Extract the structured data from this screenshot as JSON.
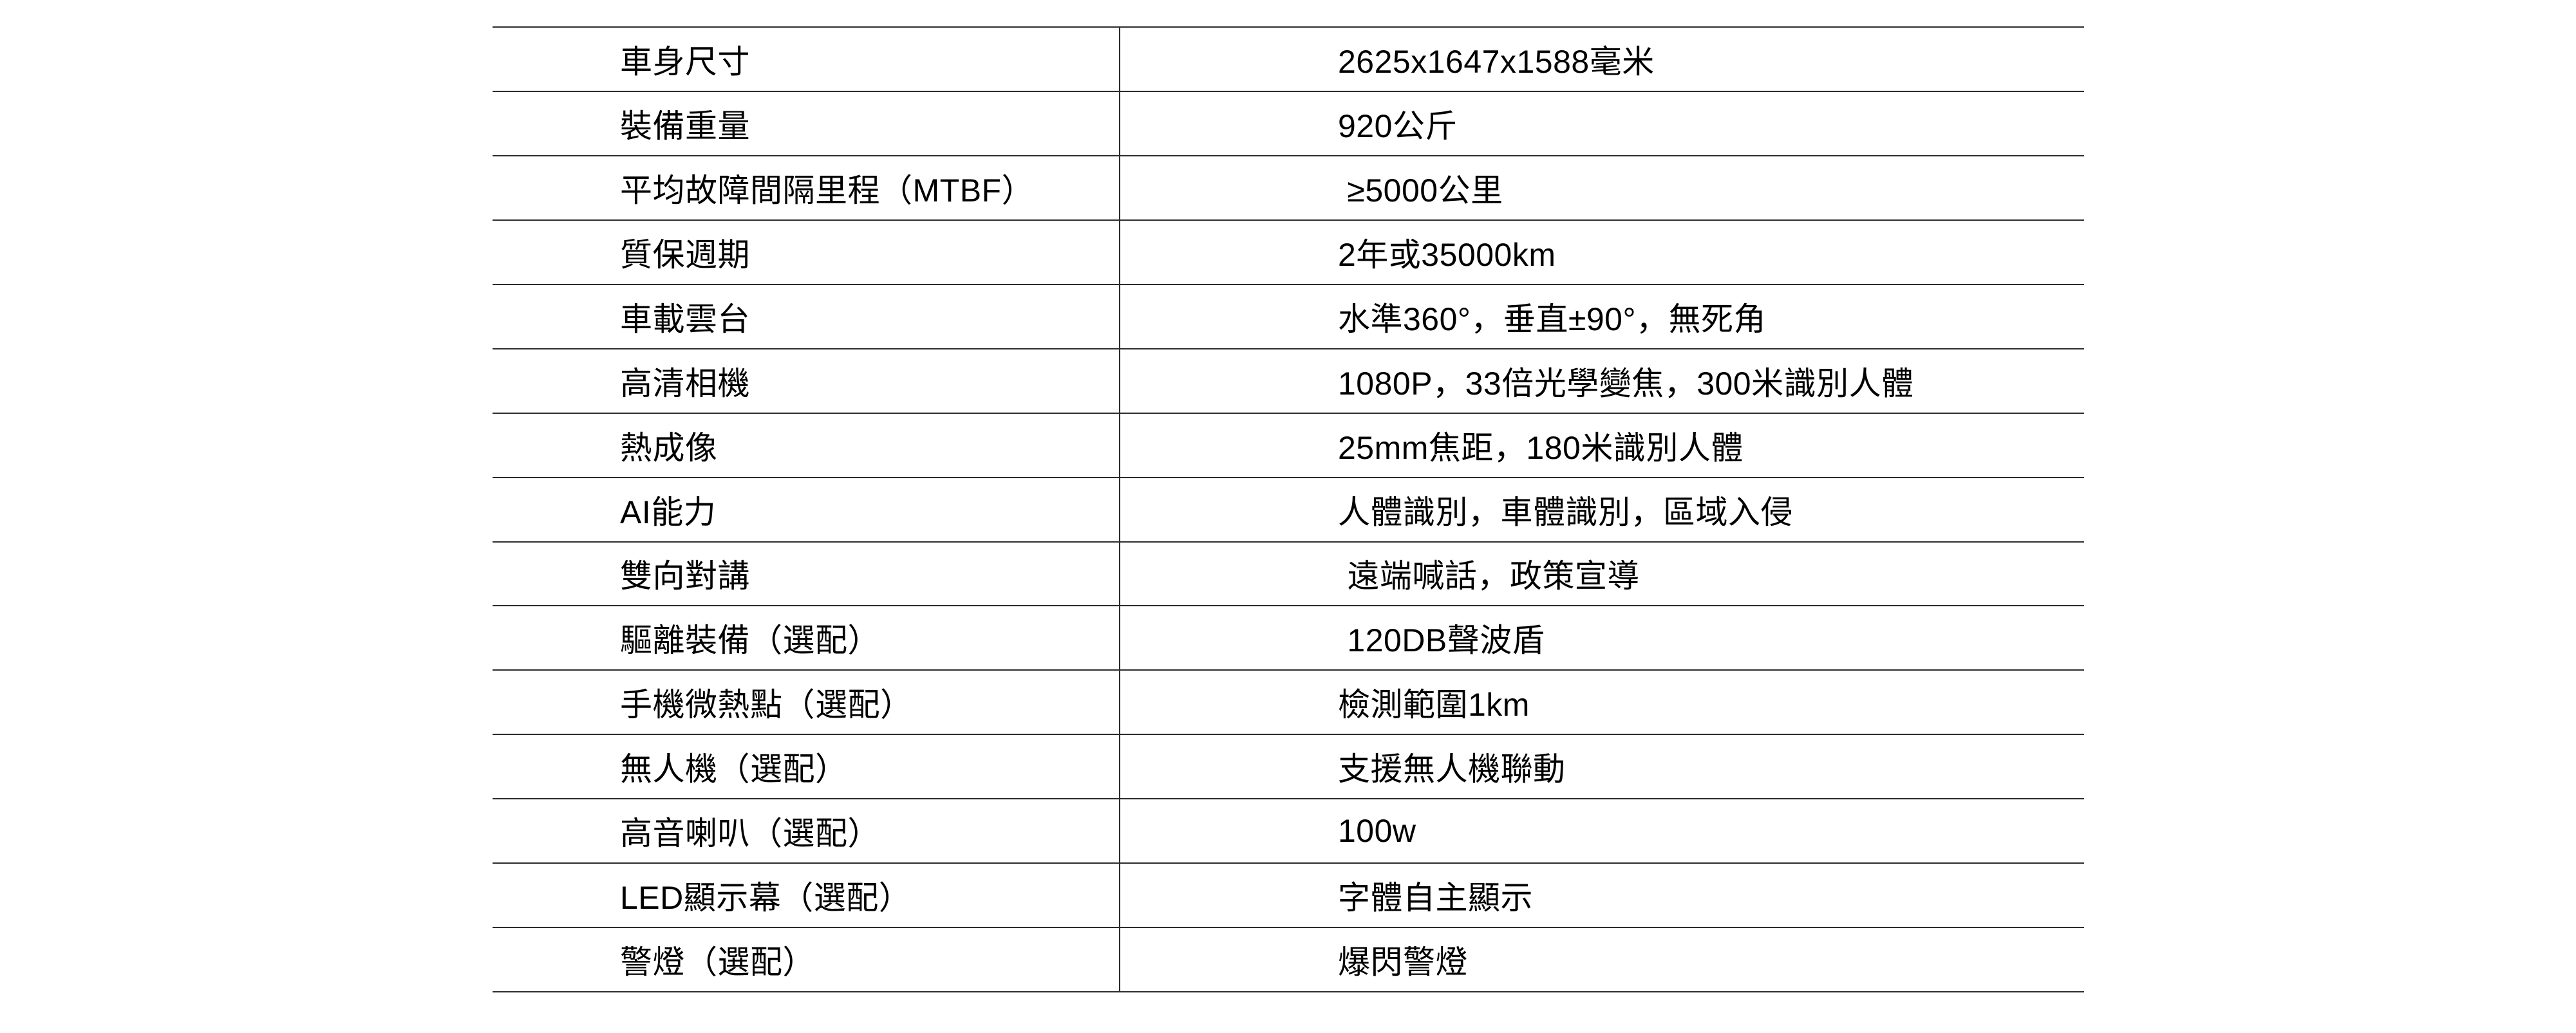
{
  "page": {
    "background": "#ffffff"
  },
  "table": {
    "line_color": "#2c2c2c",
    "text_color": "#000000",
    "columns": [
      "spec-name",
      "spec-value"
    ],
    "rows": [
      {
        "label": "車身尺寸",
        "value": "2625x1647x1588毫米"
      },
      {
        "label": "裝備重量",
        "value": "920公斤"
      },
      {
        "label": "平均故障間隔里程（MTBF）",
        "value": " ≥5000公里"
      },
      {
        "label": "質保週期",
        "value": "2年或35000km"
      },
      {
        "label": "車載雲台",
        "value": "水準360°，垂直±90°，無死角"
      },
      {
        "label": "高清相機",
        "value": "1080P，33倍光學變焦，300米識別人體"
      },
      {
        "label": "熱成像",
        "value": "25mm焦距，180米識別人體"
      },
      {
        "label": "AI能力",
        "value": "人體識別，車體識別，區域入侵"
      },
      {
        "label": "雙向對講",
        "value": " 遠端喊話，政策宣導"
      },
      {
        "label": "驅離裝備（選配）",
        "value": " 120DB聲波盾"
      },
      {
        "label": "手機微熱點（選配）",
        "value": "檢測範圍1km"
      },
      {
        "label": "無人機（選配）",
        "value": "支援無人機聯動"
      },
      {
        "label": "高音喇叭（選配）",
        "value": "100w"
      },
      {
        "label": "LED顯示幕（選配）",
        "value": "字體自主顯示"
      },
      {
        "label": "警燈（選配）",
        "value": "爆閃警燈"
      }
    ]
  }
}
